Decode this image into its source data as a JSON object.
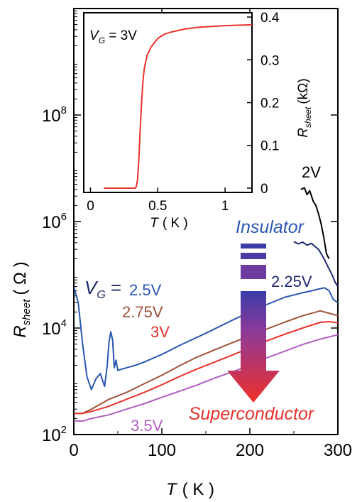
{
  "chart_data": [
    {
      "type": "line",
      "title": "",
      "xlabel": "T",
      "xlabel_unit": "( K )",
      "ylabel": "R",
      "ylabel_sub": "sheet",
      "ylabel_unit": "( Ω )",
      "xlim": [
        0,
        300
      ],
      "ylim": [
        100,
        10000000000
      ],
      "yscale": "log",
      "grid": false,
      "x_ticks": [
        {
          "value": 0,
          "label": "0"
        },
        {
          "value": 100,
          "label": "100"
        },
        {
          "value": 200,
          "label": "200"
        },
        {
          "value": 300,
          "label": "300"
        }
      ],
      "y_ticks": [
        {
          "value": 100,
          "base": "10",
          "exp": "2"
        },
        {
          "value": 10000,
          "base": "10",
          "exp": "4"
        },
        {
          "value": 1000000,
          "base": "10",
          "exp": "6"
        },
        {
          "value": 100000000,
          "base": "10",
          "exp": "8"
        }
      ],
      "vg_prefix": "V",
      "vg_prefix_sub": "G",
      "vg_prefix_tail": " =",
      "series": [
        {
          "name": "2V",
          "color": "#000000",
          "x": [
            258,
            262,
            265,
            268,
            272,
            275,
            278,
            281,
            284,
            287,
            290
          ],
          "y": [
            4000000,
            4300000,
            3200000,
            3800000,
            2400000,
            2000000,
            1400000,
            900000,
            500000,
            250000,
            200000
          ]
        },
        {
          "name": "2.25V",
          "color": "#1f2a6e",
          "x": [
            250,
            255,
            260,
            265,
            270,
            275,
            278,
            281,
            285,
            288,
            291,
            294,
            297,
            300
          ],
          "y": [
            420000,
            380000,
            410000,
            360000,
            390000,
            330000,
            300000,
            250000,
            190000,
            150000,
            120000,
            95000,
            72000,
            60000
          ]
        },
        {
          "name": "2.5V",
          "color": "#2a56b3",
          "x": [
            0,
            5,
            10,
            15,
            20,
            25,
            30,
            35,
            38,
            40,
            42,
            44,
            46,
            48,
            50,
            55,
            60,
            70,
            80,
            100,
            120,
            150,
            180,
            200,
            220,
            240,
            260,
            270,
            280,
            285,
            290,
            295,
            300
          ],
          "y": [
            60000,
            30000,
            5000,
            1200,
            700,
            1100,
            1400,
            800,
            2000,
            5500,
            8500,
            6000,
            1800,
            2500,
            1600,
            1700,
            1800,
            2000,
            2300,
            3200,
            4700,
            8000,
            14000,
            20000,
            28000,
            38000,
            46000,
            50000,
            55000,
            57000,
            50000,
            34000,
            30000
          ]
        },
        {
          "name": "2.75V",
          "color": "#a0523a",
          "x": [
            0,
            10,
            20,
            40,
            60,
            80,
            100,
            120,
            140,
            160,
            180,
            200,
            220,
            240,
            260,
            280,
            290,
            300
          ],
          "y": [
            250,
            250,
            300,
            460,
            620,
            900,
            1300,
            1950,
            2850,
            3900,
            5300,
            7200,
            9700,
            13000,
            17000,
            21000,
            19000,
            17000
          ]
        },
        {
          "name": "3V",
          "color": "#e8322c",
          "x": [
            0,
            10,
            20,
            40,
            60,
            80,
            100,
            120,
            140,
            160,
            180,
            200,
            220,
            240,
            260,
            280,
            290,
            300
          ],
          "y": [
            250,
            250,
            270,
            340,
            460,
            620,
            860,
            1230,
            1700,
            2300,
            3100,
            4250,
            5800,
            7700,
            10000,
            12800,
            13200,
            12500
          ]
        },
        {
          "name": "3.5V",
          "color": "#b05fbf",
          "x": [
            0,
            10,
            20,
            40,
            60,
            80,
            100,
            120,
            140,
            160,
            180,
            200,
            220,
            240,
            260,
            280,
            300
          ],
          "y": [
            180,
            180,
            200,
            235,
            300,
            380,
            500,
            650,
            850,
            1150,
            1500,
            2000,
            2800,
            3700,
            4900,
            6200,
            7500
          ]
        }
      ],
      "annotations": {
        "insulator": "Insulator",
        "superconductor": "Superconductor",
        "insulator_color": "#2a56b3",
        "superconductor_color": "#e8322c"
      }
    },
    {
      "type": "line",
      "title": "",
      "label": "V",
      "label_sub": "G",
      "label_tail": " = 3V",
      "xlabel": "T",
      "xlabel_unit": "( K )",
      "ylabel": "R",
      "ylabel_sub": "sheet",
      "ylabel_unit": "(kΩ)",
      "xlim": [
        -0.05,
        1.2
      ],
      "ylim": [
        -0.01,
        0.41
      ],
      "grid": false,
      "x_ticks": [
        {
          "value": 0,
          "label": "0"
        },
        {
          "value": 0.5,
          "label": "0.5"
        },
        {
          "value": 1,
          "label": "1"
        }
      ],
      "y_ticks": [
        {
          "value": 0,
          "label": "0"
        },
        {
          "value": 0.1,
          "label": "0.1"
        },
        {
          "value": 0.2,
          "label": "0.2"
        },
        {
          "value": 0.3,
          "label": "0.3"
        },
        {
          "value": 0.4,
          "label": "0.4"
        }
      ],
      "series": [
        {
          "name": "3V",
          "color": "#e8322c",
          "x": [
            0.1,
            0.2,
            0.3,
            0.33,
            0.34,
            0.35,
            0.36,
            0.37,
            0.38,
            0.39,
            0.4,
            0.42,
            0.45,
            0.5,
            0.55,
            0.6,
            0.7,
            0.8,
            0.9,
            1.0,
            1.1,
            1.2
          ],
          "y": [
            0,
            0,
            0,
            0,
            0.003,
            0.02,
            0.07,
            0.14,
            0.2,
            0.25,
            0.28,
            0.31,
            0.33,
            0.35,
            0.36,
            0.365,
            0.372,
            0.376,
            0.378,
            0.38,
            0.381,
            0.382
          ]
        }
      ]
    }
  ]
}
